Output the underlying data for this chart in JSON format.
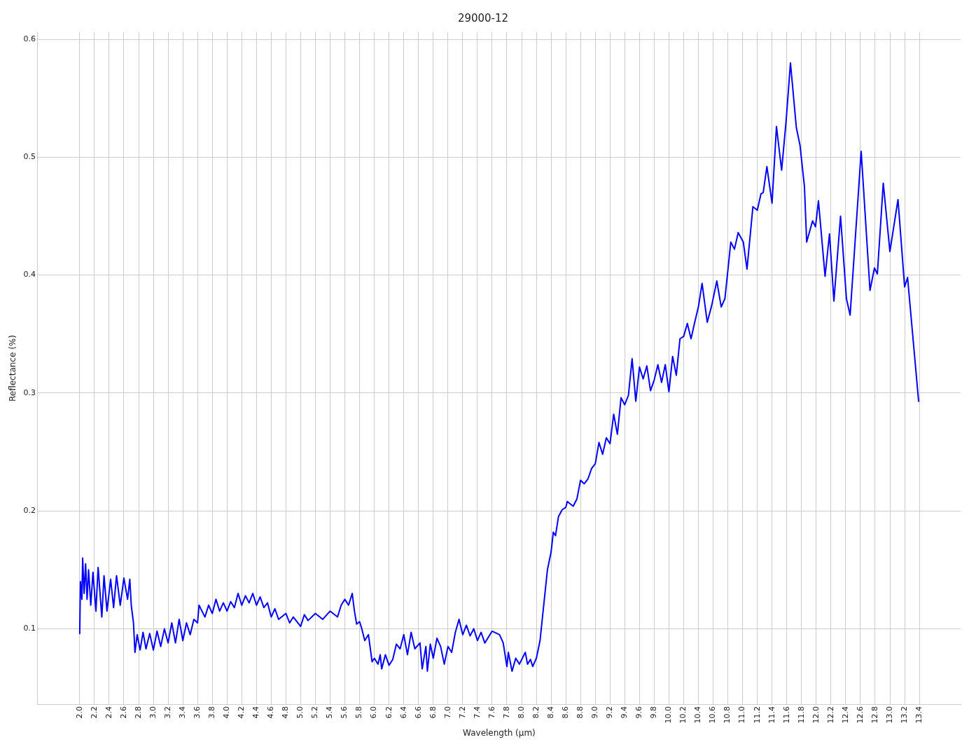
{
  "chart_data": {
    "type": "line",
    "title": "29000-12",
    "xlabel": "Wavelength (µm)",
    "ylabel": "Reflectance (%)",
    "xlim": [
      1.43,
      13.96
    ],
    "ylim": [
      0.036,
      0.606
    ],
    "xticks": [
      {
        "value": 2,
        "label": "2.0"
      },
      2.2,
      2.4,
      2.6,
      2.8,
      {
        "value": 3,
        "label": "3.0"
      },
      3.2,
      3.4,
      3.6,
      3.8,
      {
        "value": 4,
        "label": "4.0"
      },
      4.2,
      4.4,
      4.6,
      4.8,
      {
        "value": 5,
        "label": "5.0"
      },
      5.2,
      5.4,
      5.6,
      5.8,
      {
        "value": 6,
        "label": "6.0"
      },
      6.2,
      6.4,
      6.6,
      6.8,
      {
        "value": 7,
        "label": "7.0"
      },
      7.2,
      7.4,
      7.6,
      7.8,
      {
        "value": 8,
        "label": "8.0"
      },
      8.2,
      8.4,
      8.6,
      8.8,
      {
        "value": 9,
        "label": "9.0"
      },
      9.2,
      9.4,
      9.6,
      9.8,
      {
        "value": 10,
        "label": "10.0"
      },
      10.2,
      10.4,
      10.6,
      10.8,
      {
        "value": 11,
        "label": "11.0"
      },
      11.2,
      11.4,
      11.6,
      11.8,
      {
        "value": 12,
        "label": "12.0"
      },
      12.2,
      12.4,
      12.6,
      12.8,
      {
        "value": 13,
        "label": "13.0"
      },
      13.2,
      13.4
    ],
    "yticks": [
      0.1,
      0.2,
      0.3,
      0.4,
      0.5,
      0.6
    ],
    "grid": true,
    "legend": false,
    "marker": "none",
    "line_style": "solid",
    "series": [
      {
        "color": "#0000ff",
        "x": [
          2.0,
          2.01,
          2.03,
          2.04,
          2.06,
          2.08,
          2.1,
          2.12,
          2.15,
          2.18,
          2.22,
          2.25,
          2.3,
          2.33,
          2.37,
          2.42,
          2.46,
          2.5,
          2.55,
          2.6,
          2.65,
          2.68,
          2.7,
          2.73,
          2.75,
          2.78,
          2.82,
          2.86,
          2.9,
          2.95,
          3.0,
          3.05,
          3.1,
          3.15,
          3.2,
          3.25,
          3.3,
          3.35,
          3.4,
          3.45,
          3.5,
          3.55,
          3.6,
          3.62,
          3.7,
          3.75,
          3.8,
          3.85,
          3.9,
          3.95,
          4.0,
          4.05,
          4.1,
          4.15,
          4.2,
          4.25,
          4.3,
          4.35,
          4.4,
          4.45,
          4.5,
          4.55,
          4.6,
          4.65,
          4.7,
          4.8,
          4.85,
          4.9,
          5.0,
          5.05,
          5.1,
          5.2,
          5.3,
          5.4,
          5.5,
          5.55,
          5.6,
          5.65,
          5.7,
          5.73,
          5.76,
          5.8,
          5.83,
          5.87,
          5.92,
          5.97,
          6.0,
          6.05,
          6.08,
          6.1,
          6.15,
          6.2,
          6.25,
          6.3,
          6.35,
          6.4,
          6.45,
          6.5,
          6.55,
          6.62,
          6.65,
          6.7,
          6.72,
          6.76,
          6.8,
          6.85,
          6.9,
          6.95,
          7.0,
          7.05,
          7.1,
          7.15,
          7.2,
          7.25,
          7.3,
          7.35,
          7.4,
          7.45,
          7.5,
          7.6,
          7.7,
          7.75,
          7.8,
          7.82,
          7.87,
          7.92,
          7.97,
          8.05,
          8.08,
          8.12,
          8.15,
          8.2,
          8.25,
          8.3,
          8.35,
          8.4,
          8.43,
          8.46,
          8.5,
          8.55,
          8.6,
          8.62,
          8.7,
          8.75,
          8.8,
          8.85,
          8.9,
          8.95,
          9.0,
          9.05,
          9.1,
          9.15,
          9.2,
          9.25,
          9.3,
          9.35,
          9.4,
          9.45,
          9.5,
          9.55,
          9.6,
          9.65,
          9.7,
          9.75,
          9.8,
          9.85,
          9.9,
          9.95,
          10.0,
          10.05,
          10.1,
          10.15,
          10.2,
          10.25,
          10.3,
          10.35,
          10.4,
          10.45,
          10.52,
          10.58,
          10.65,
          10.71,
          10.76,
          10.84,
          10.89,
          10.94,
          11.01,
          11.06,
          11.14,
          11.2,
          11.25,
          11.28,
          11.33,
          11.4,
          11.46,
          11.53,
          11.59,
          11.65,
          11.73,
          11.78,
          11.84,
          11.87,
          11.95,
          11.99,
          12.03,
          12.12,
          12.18,
          12.24,
          12.33,
          12.41,
          12.46,
          12.54,
          12.61,
          12.73,
          12.79,
          12.83,
          12.91,
          13.0,
          13.11,
          13.2,
          13.24,
          13.39
        ],
        "values": [
          0.096,
          0.14,
          0.125,
          0.16,
          0.13,
          0.155,
          0.125,
          0.15,
          0.12,
          0.148,
          0.115,
          0.152,
          0.11,
          0.145,
          0.115,
          0.142,
          0.118,
          0.145,
          0.12,
          0.143,
          0.125,
          0.142,
          0.12,
          0.105,
          0.08,
          0.095,
          0.082,
          0.097,
          0.083,
          0.096,
          0.082,
          0.098,
          0.085,
          0.1,
          0.088,
          0.105,
          0.088,
          0.108,
          0.09,
          0.105,
          0.095,
          0.108,
          0.105,
          0.12,
          0.11,
          0.12,
          0.113,
          0.125,
          0.115,
          0.122,
          0.115,
          0.123,
          0.118,
          0.13,
          0.12,
          0.128,
          0.122,
          0.13,
          0.12,
          0.127,
          0.118,
          0.122,
          0.11,
          0.117,
          0.108,
          0.113,
          0.105,
          0.11,
          0.102,
          0.112,
          0.107,
          0.113,
          0.108,
          0.115,
          0.11,
          0.12,
          0.125,
          0.12,
          0.13,
          0.115,
          0.104,
          0.106,
          0.1,
          0.09,
          0.095,
          0.072,
          0.075,
          0.07,
          0.078,
          0.066,
          0.078,
          0.069,
          0.074,
          0.087,
          0.083,
          0.095,
          0.078,
          0.097,
          0.083,
          0.088,
          0.066,
          0.085,
          0.064,
          0.087,
          0.075,
          0.092,
          0.085,
          0.07,
          0.085,
          0.08,
          0.097,
          0.108,
          0.095,
          0.103,
          0.094,
          0.1,
          0.09,
          0.097,
          0.088,
          0.098,
          0.095,
          0.088,
          0.068,
          0.08,
          0.064,
          0.075,
          0.07,
          0.08,
          0.07,
          0.074,
          0.068,
          0.075,
          0.09,
          0.12,
          0.15,
          0.165,
          0.182,
          0.179,
          0.195,
          0.201,
          0.203,
          0.208,
          0.204,
          0.21,
          0.226,
          0.223,
          0.227,
          0.236,
          0.24,
          0.258,
          0.248,
          0.262,
          0.257,
          0.282,
          0.265,
          0.296,
          0.29,
          0.298,
          0.329,
          0.293,
          0.322,
          0.312,
          0.323,
          0.302,
          0.311,
          0.324,
          0.309,
          0.324,
          0.301,
          0.331,
          0.315,
          0.346,
          0.348,
          0.359,
          0.346,
          0.36,
          0.373,
          0.393,
          0.36,
          0.374,
          0.395,
          0.373,
          0.38,
          0.428,
          0.422,
          0.436,
          0.428,
          0.405,
          0.458,
          0.455,
          0.469,
          0.47,
          0.492,
          0.461,
          0.526,
          0.489,
          0.53,
          0.58,
          0.525,
          0.51,
          0.475,
          0.428,
          0.446,
          0.441,
          0.463,
          0.399,
          0.435,
          0.378,
          0.45,
          0.38,
          0.366,
          0.44,
          0.505,
          0.387,
          0.406,
          0.401,
          0.478,
          0.42,
          0.464,
          0.39,
          0.398,
          0.293
        ]
      }
    ]
  }
}
